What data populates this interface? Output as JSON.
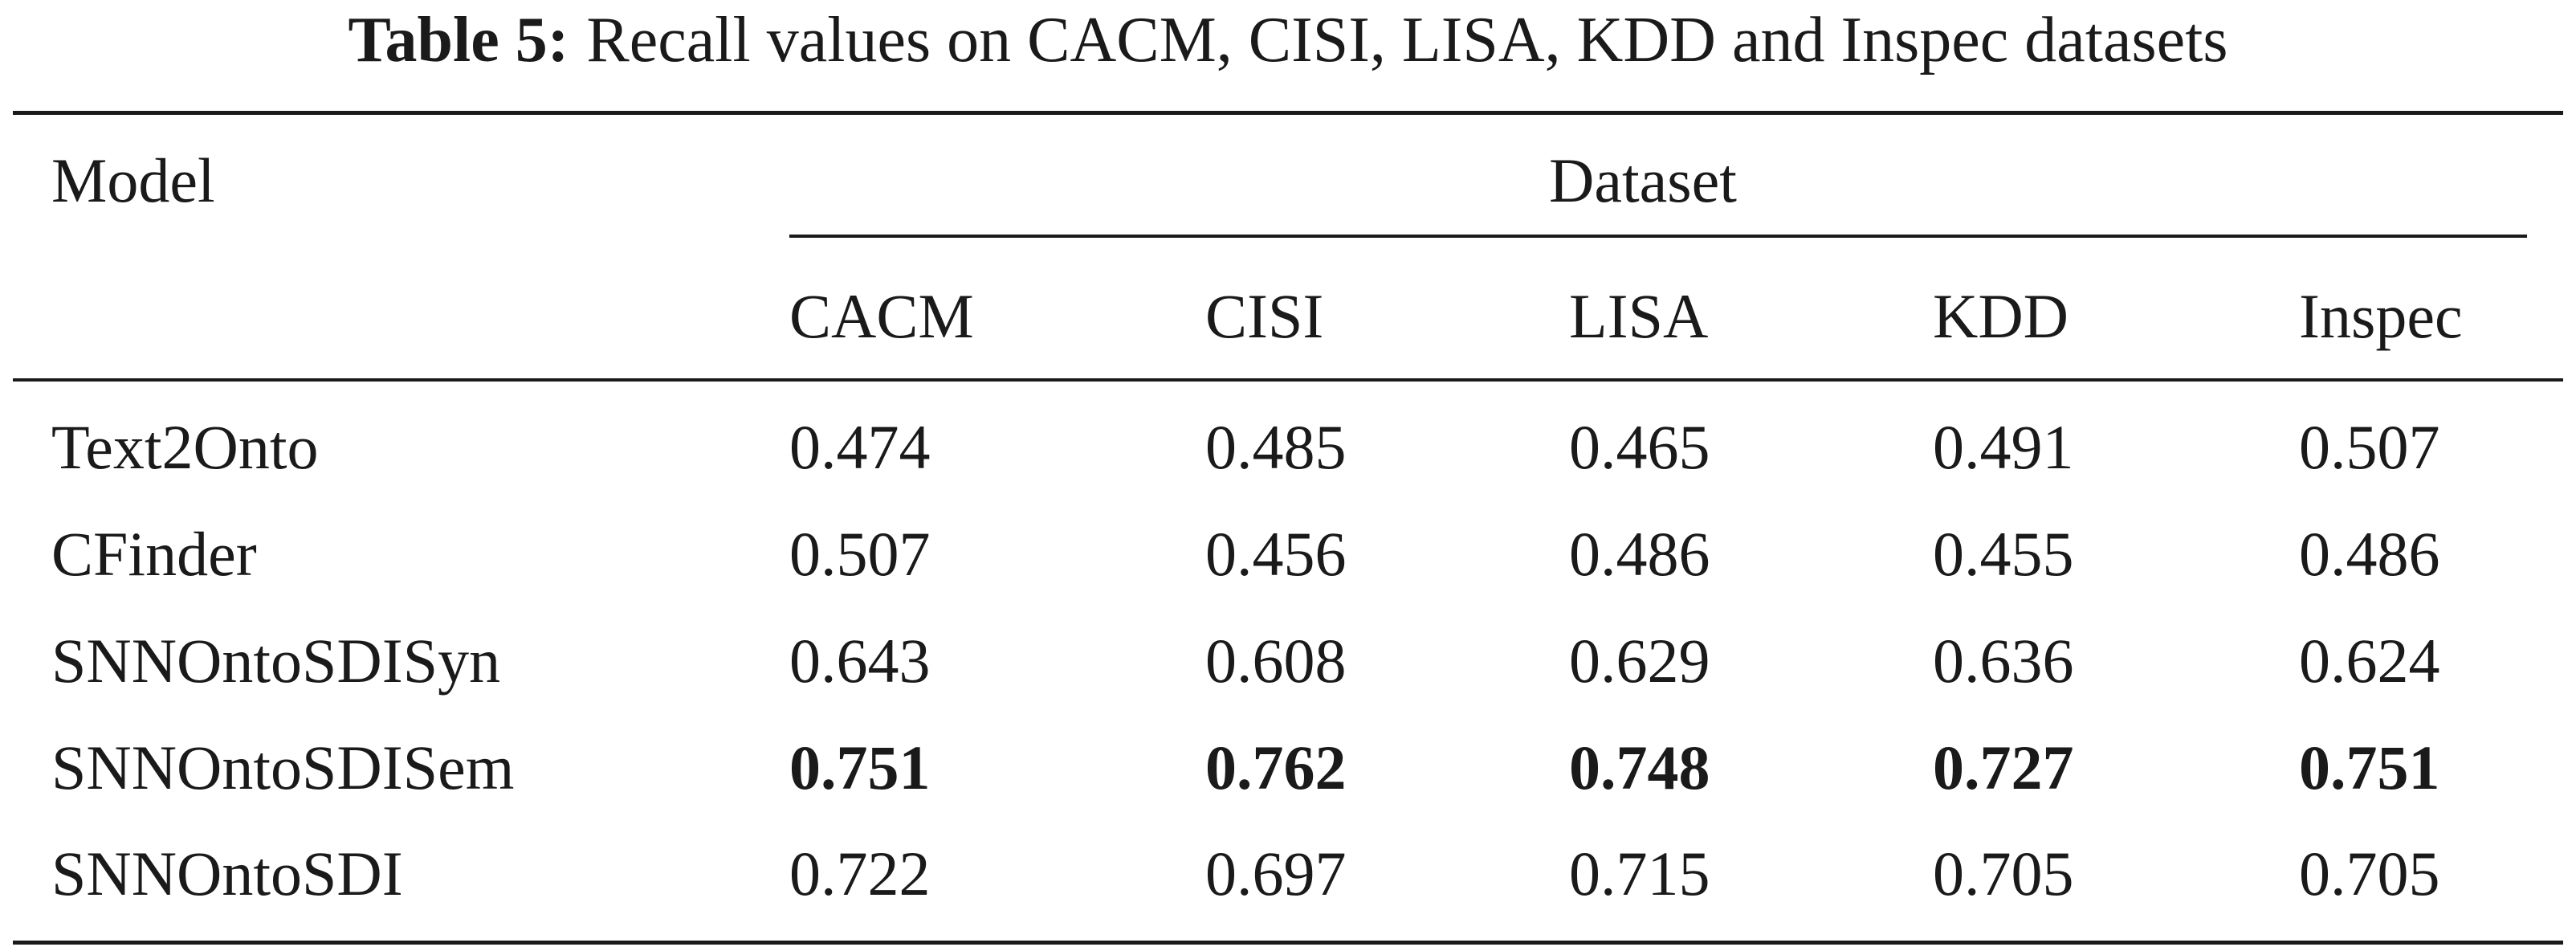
{
  "caption": {
    "label": "Table 5:",
    "text": "Recall values on CACM, CISI, LISA, KDD and Inspec datasets"
  },
  "header": {
    "model": "Model",
    "dataset": "Dataset",
    "columns": [
      "CACM",
      "CISI",
      "LISA",
      "KDD",
      "Inspec"
    ]
  },
  "rows": [
    {
      "model": "Text2Onto",
      "values": [
        "0.474",
        "0.485",
        "0.465",
        "0.491",
        "0.507"
      ],
      "bold": false
    },
    {
      "model": "CFinder",
      "values": [
        "0.507",
        "0.456",
        "0.486",
        "0.455",
        "0.486"
      ],
      "bold": false
    },
    {
      "model": "SNNOntoSDISyn",
      "values": [
        "0.643",
        "0.608",
        "0.629",
        "0.636",
        "0.624"
      ],
      "bold": false
    },
    {
      "model": "SNNOntoSDISem",
      "values": [
        "0.751",
        "0.762",
        "0.748",
        "0.727",
        "0.751"
      ],
      "bold": true
    },
    {
      "model": "SNNOntoSDI",
      "values": [
        "0.722",
        "0.697",
        "0.715",
        "0.705",
        "0.705"
      ],
      "bold": false
    }
  ]
}
